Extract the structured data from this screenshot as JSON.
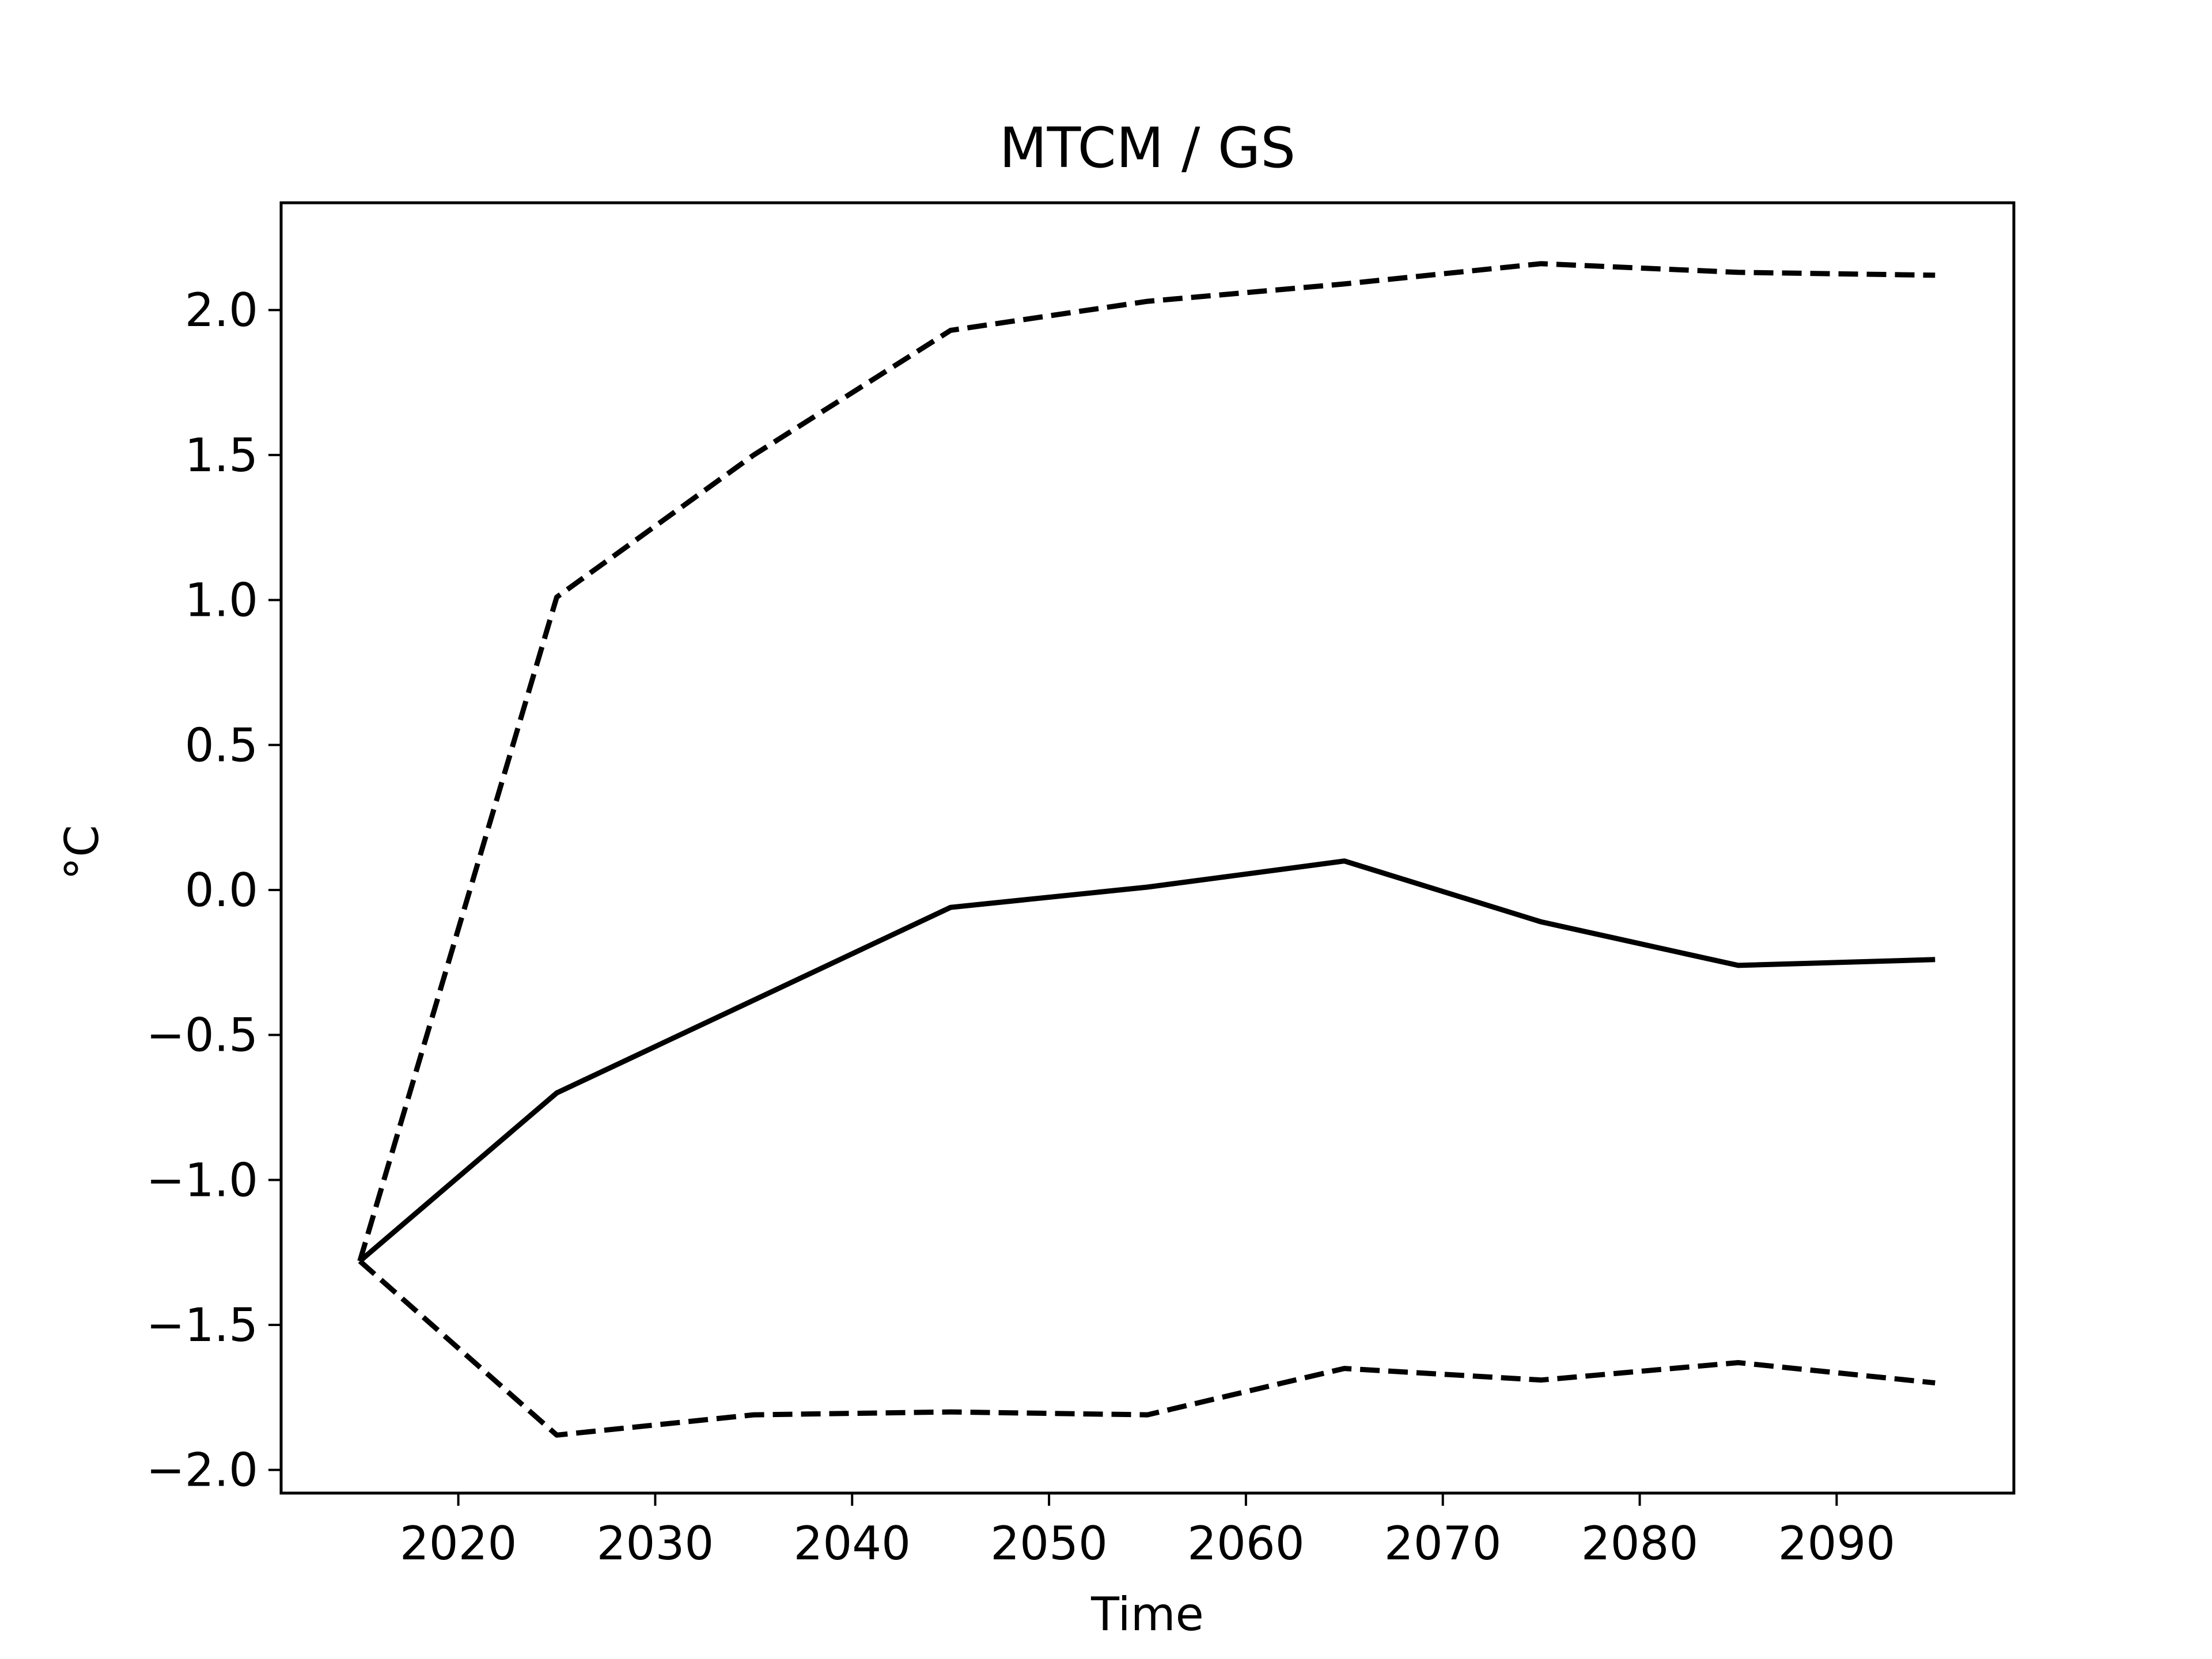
{
  "chart_data": {
    "type": "line",
    "title": "MTCM / GS",
    "xlabel": "Time",
    "ylabel": "°C",
    "xlim": [
      2011,
      2099
    ],
    "ylim": [
      -2.08,
      2.37
    ],
    "x_ticks": [
      2020,
      2030,
      2040,
      2050,
      2060,
      2070,
      2080,
      2090
    ],
    "y_ticks": [
      {
        "value": -2.0,
        "label": "−2.0"
      },
      {
        "value": -1.5,
        "label": "−1.5"
      },
      {
        "value": -1.0,
        "label": "−1.0"
      },
      {
        "value": -0.5,
        "label": "−0.5"
      },
      {
        "value": 0.0,
        "label": "0.0"
      },
      {
        "value": 0.5,
        "label": "0.5"
      },
      {
        "value": 1.0,
        "label": "1.0"
      },
      {
        "value": 1.5,
        "label": "1.5"
      },
      {
        "value": 2.0,
        "label": "2.0"
      }
    ],
    "grid": false,
    "legend": false,
    "x": [
      2015,
      2025,
      2035,
      2045,
      2055,
      2065,
      2075,
      2085,
      2095
    ],
    "series": [
      {
        "style": "solid",
        "color": "#000000",
        "values": [
          -1.28,
          -0.7,
          -0.38,
          -0.06,
          0.01,
          0.1,
          -0.11,
          -0.26,
          -0.24
        ]
      },
      {
        "style": "dashed",
        "color": "#000000",
        "values": [
          -1.28,
          1.01,
          1.5,
          1.93,
          2.03,
          2.09,
          2.16,
          2.13,
          2.12
        ]
      },
      {
        "style": "dashed",
        "color": "#000000",
        "values": [
          -1.28,
          -1.88,
          -1.81,
          -1.8,
          -1.81,
          -1.65,
          -1.69,
          -1.63,
          -1.7
        ]
      }
    ]
  }
}
